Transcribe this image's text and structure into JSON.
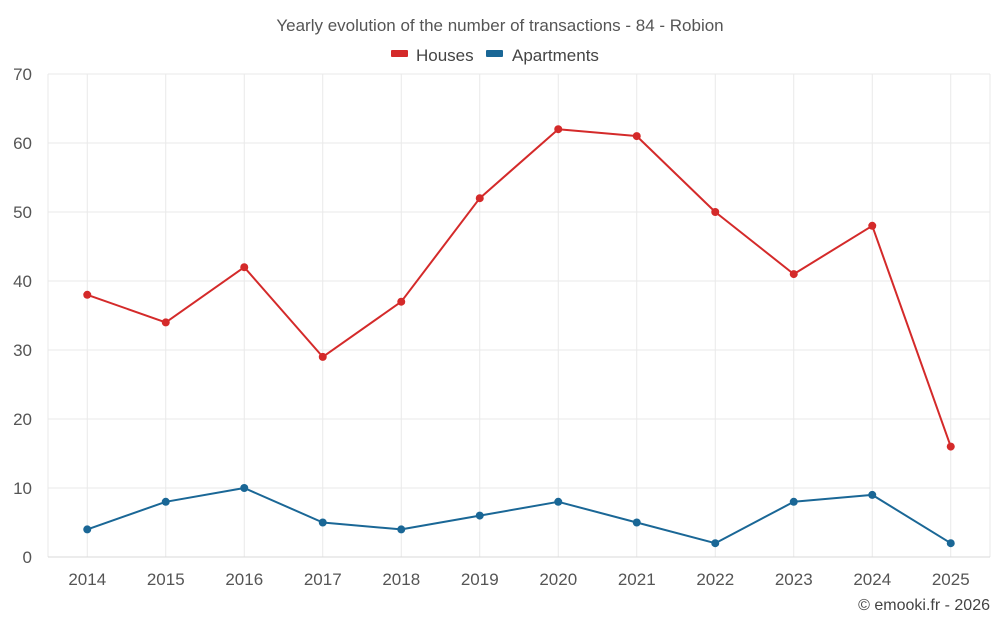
{
  "chart_data": {
    "type": "line",
    "title": "Yearly evolution of the number of transactions - 84 - Robion",
    "categories": [
      "2014",
      "2015",
      "2016",
      "2017",
      "2018",
      "2019",
      "2020",
      "2021",
      "2022",
      "2023",
      "2024",
      "2025"
    ],
    "series": [
      {
        "name": "Houses",
        "color": "#d42a2a",
        "values": [
          38,
          34,
          42,
          29,
          37,
          52,
          62,
          61,
          50,
          41,
          48,
          16
        ]
      },
      {
        "name": "Apartments",
        "color": "#1a6796",
        "values": [
          4,
          8,
          10,
          5,
          4,
          6,
          8,
          5,
          2,
          8,
          9,
          2
        ]
      }
    ],
    "y_ticks": [
      "0",
      "10",
      "20",
      "30",
      "40",
      "50",
      "60",
      "70"
    ],
    "ylim": [
      0,
      70
    ],
    "xlabel": "",
    "ylabel": "",
    "grid": true,
    "legend_position": "top-center",
    "credit": "© emooki.fr - 2026"
  }
}
